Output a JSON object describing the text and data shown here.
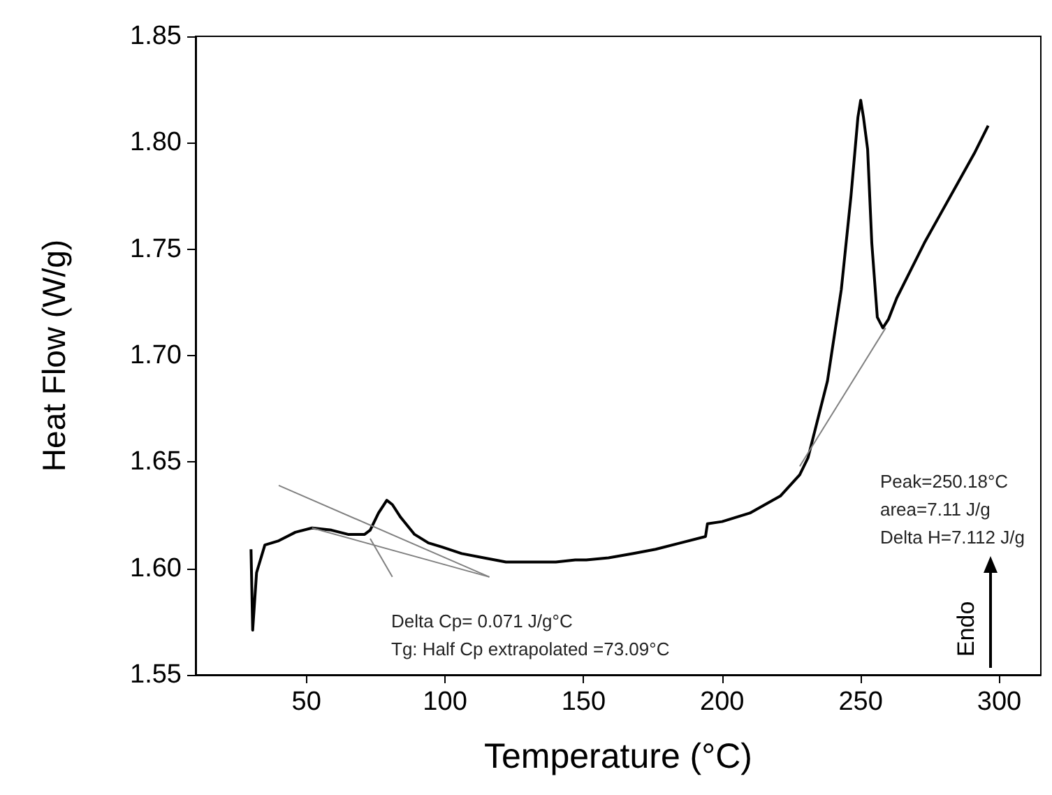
{
  "chart_data": {
    "type": "line",
    "xlabel": "Temperature (°C)",
    "ylabel": "Heat Flow (W/g)",
    "xlim": [
      10,
      315
    ],
    "xticks": [
      50,
      100,
      150,
      200,
      250,
      300
    ],
    "ylim": [
      1.55,
      1.85
    ],
    "yticks": [
      1.55,
      {
        "value": 1.6,
        "label": "1.60"
      },
      1.65,
      {
        "value": 1.7,
        "label": "1.70"
      },
      1.75,
      {
        "value": 1.8,
        "label": "1.80"
      },
      1.85
    ],
    "grid": false,
    "marker": "none",
    "line_style": "solid",
    "series": [
      {
        "color": "#000000",
        "x": [
          30,
          30.6,
          32,
          35,
          40,
          46,
          52,
          59,
          65,
          71,
          73,
          76,
          79,
          81,
          84,
          89,
          94,
          99,
          106,
          114,
          122,
          131,
          140,
          147,
          151,
          159,
          168,
          176,
          185,
          194,
          194.7,
          200,
          210,
          221,
          228,
          231,
          238,
          243,
          246.5,
          249,
          250,
          251,
          252.5,
          254,
          256,
          258,
          260,
          263,
          268,
          273,
          279,
          285,
          291,
          296
        ],
        "values": [
          1.609,
          1.571,
          1.598,
          1.611,
          1.613,
          1.617,
          1.619,
          1.618,
          1.616,
          1.616,
          1.618,
          1.626,
          1.632,
          1.63,
          1.624,
          1.616,
          1.612,
          1.61,
          1.607,
          1.605,
          1.603,
          1.603,
          1.603,
          1.604,
          1.604,
          1.605,
          1.607,
          1.609,
          1.612,
          1.615,
          1.621,
          1.622,
          1.626,
          1.634,
          1.644,
          1.652,
          1.688,
          1.731,
          1.775,
          1.812,
          1.82,
          1.812,
          1.797,
          1.753,
          1.718,
          1.713,
          1.717,
          1.727,
          1.74,
          1.753,
          1.767,
          1.781,
          1.795,
          1.808
        ]
      },
      {
        "color": "#808080",
        "x": [
          40,
          116
        ],
        "values": [
          1.639,
          1.596
        ]
      },
      {
        "color": "#808080",
        "x": [
          52,
          116
        ],
        "values": [
          1.619,
          1.596
        ]
      },
      {
        "color": "#808080",
        "x": [
          73,
          81
        ],
        "values": [
          1.614,
          1.596
        ]
      },
      {
        "color": "#808080",
        "x": [
          228,
          259
        ],
        "values": [
          1.648,
          1.713
        ]
      }
    ],
    "annotations": [
      "Peak=250.18°C",
      "area=7.11 J/g",
      "Delta H=7.112 J/g",
      "Delta Cp= 0.071 J/g°C",
      "Tg: Half Cp extrapolated =73.09°C",
      "Endo"
    ]
  }
}
